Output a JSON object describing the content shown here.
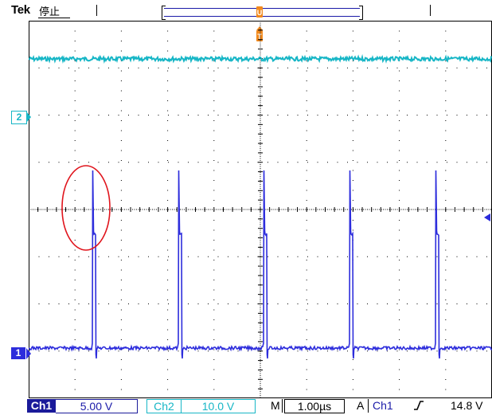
{
  "header": {
    "brand": "Tek",
    "run_state": "停止"
  },
  "channels": {
    "ch1": {
      "marker": "1",
      "name": "Ch1",
      "scale": "5.00 V",
      "color": "#2d2ddc"
    },
    "ch2": {
      "marker": "2",
      "name": "Ch2",
      "scale": "10.0 V",
      "color": "#17b6c6"
    }
  },
  "horizontal": {
    "label": "M",
    "timebase": "1.00µs"
  },
  "trigger": {
    "mode_label": "A",
    "source": "Ch1",
    "slope_icon": "rising-edge-icon",
    "level": "14.8 V",
    "position_icon": "trigger-position-icon",
    "marker_color": "#f28a1e"
  },
  "annotation": {
    "type": "ellipse-highlight",
    "color": "#e0141c"
  },
  "colors": {
    "graticule": "#000000",
    "background": "#ffffff"
  }
}
